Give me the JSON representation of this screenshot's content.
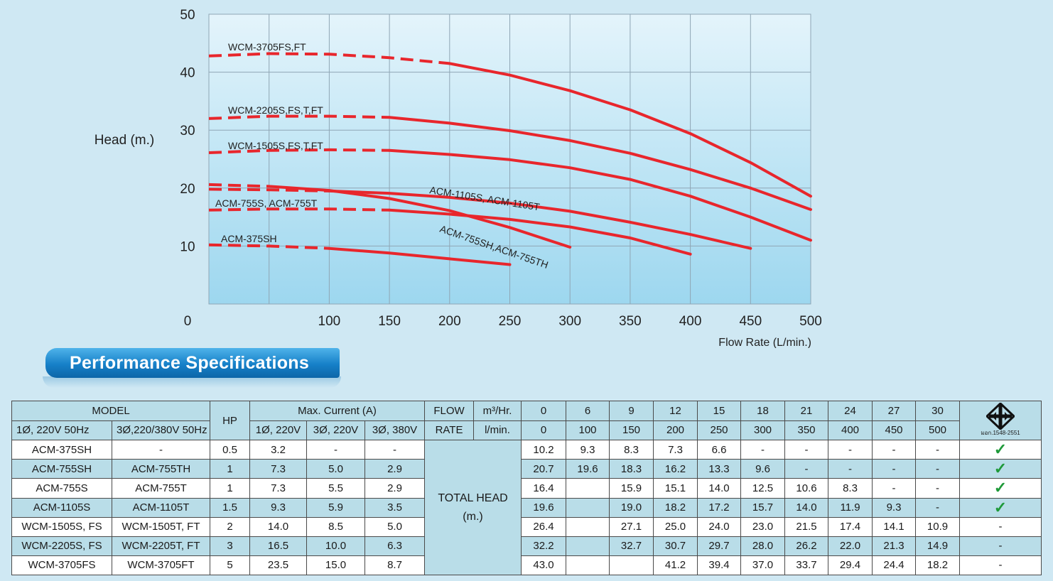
{
  "chart_data": {
    "type": "line",
    "xlabel": "Flow Rate (L/min.)",
    "ylabel": "Head (m.)",
    "xlim": [
      0,
      500
    ],
    "ylim": [
      0,
      50
    ],
    "origin_label": "0",
    "x_ticks": [
      "100",
      "150",
      "200",
      "250",
      "300",
      "350",
      "400",
      "450",
      "500"
    ],
    "y_ticks": [
      "10",
      "20",
      "30",
      "40",
      "50"
    ],
    "grid": true,
    "series": [
      {
        "name": "WCM-3705FS,FT",
        "dashed": [
          [
            0,
            42.8
          ],
          [
            50,
            43.2
          ],
          [
            100,
            43.1
          ],
          [
            150,
            42.5
          ],
          [
            200,
            41.5
          ]
        ],
        "solid": [
          [
            200,
            41.5
          ],
          [
            250,
            39.5
          ],
          [
            300,
            36.8
          ],
          [
            350,
            33.5
          ],
          [
            400,
            29.4
          ],
          [
            450,
            24.4
          ],
          [
            500,
            18.6
          ]
        ]
      },
      {
        "name": "WCM-2205S,FS,T,FT",
        "dashed": [
          [
            0,
            32.0
          ],
          [
            50,
            32.4
          ],
          [
            100,
            32.4
          ],
          [
            150,
            32.2
          ]
        ],
        "solid": [
          [
            150,
            32.2
          ],
          [
            200,
            31.2
          ],
          [
            250,
            29.9
          ],
          [
            300,
            28.2
          ],
          [
            350,
            26.0
          ],
          [
            400,
            23.2
          ],
          [
            450,
            20.0
          ],
          [
            500,
            16.3
          ]
        ]
      },
      {
        "name": "WCM-1505S,FS,T,FT",
        "dashed": [
          [
            0,
            26.1
          ],
          [
            50,
            26.5
          ],
          [
            100,
            26.6
          ],
          [
            150,
            26.5
          ]
        ],
        "solid": [
          [
            150,
            26.5
          ],
          [
            200,
            25.8
          ],
          [
            250,
            24.9
          ],
          [
            300,
            23.5
          ],
          [
            350,
            21.5
          ],
          [
            400,
            18.6
          ],
          [
            450,
            15.0
          ],
          [
            500,
            11.0
          ]
        ]
      },
      {
        "name": "ACM-1105S, ACM-1105T",
        "dashed": [
          [
            0,
            19.8
          ],
          [
            50,
            19.7
          ],
          [
            100,
            19.5
          ]
        ],
        "solid": [
          [
            100,
            19.5
          ],
          [
            150,
            19.1
          ],
          [
            200,
            18.4
          ],
          [
            250,
            17.4
          ],
          [
            300,
            16.0
          ],
          [
            350,
            14.1
          ],
          [
            400,
            12.0
          ],
          [
            450,
            9.6
          ]
        ]
      },
      {
        "name": "ACM-755SH,ACM-755TH",
        "dashed": [
          [
            0,
            20.6
          ],
          [
            50,
            20.3
          ]
        ],
        "solid": [
          [
            50,
            20.3
          ],
          [
            100,
            19.6
          ],
          [
            150,
            18.2
          ],
          [
            200,
            16.1
          ],
          [
            250,
            13.2
          ],
          [
            300,
            9.8
          ]
        ]
      },
      {
        "name": "ACM-755S, ACM-755T",
        "dashed": [
          [
            0,
            16.2
          ],
          [
            50,
            16.4
          ],
          [
            100,
            16.4
          ],
          [
            150,
            16.2
          ]
        ],
        "solid": [
          [
            150,
            16.2
          ],
          [
            200,
            15.5
          ],
          [
            250,
            14.6
          ],
          [
            300,
            13.3
          ],
          [
            350,
            11.4
          ],
          [
            400,
            8.6
          ]
        ]
      },
      {
        "name": "ACM-375SH",
        "dashed": [
          [
            0,
            10.2
          ],
          [
            50,
            10.0
          ],
          [
            100,
            9.6
          ]
        ],
        "solid": [
          [
            100,
            9.6
          ],
          [
            150,
            8.8
          ],
          [
            200,
            7.8
          ],
          [
            250,
            6.8
          ]
        ]
      }
    ],
    "colors": {
      "line": "#e8262c",
      "grid": "#8fa6b5",
      "plot_top": "#e4f4fb",
      "plot_bottom": "#9dd7ef"
    }
  },
  "banner": {
    "title": "Performance Specifications"
  },
  "table": {
    "header1": {
      "model": "MODEL",
      "hp": "HP",
      "max_current": "Max. Current (A)",
      "flow": "FLOW",
      "m3_unit": "m³/Hr.",
      "flow_m3": [
        "0",
        "6",
        "9",
        "12",
        "15",
        "18",
        "21",
        "24",
        "27",
        "30"
      ]
    },
    "header2": {
      "single_phase": "1Ø, 220V 50Hz",
      "three_phase": "3Ø,220/380V 50Hz",
      "cur_1_220": "1Ø, 220V",
      "cur_3_220": "3Ø, 220V",
      "cur_3_380": "3Ø, 380V",
      "rate": "RATE",
      "lmin_unit": "l/min.",
      "flow_lmin": [
        "0",
        "100",
        "150",
        "200",
        "250",
        "300",
        "350",
        "400",
        "450",
        "500"
      ]
    },
    "certification_text": "มอก.1548-2551",
    "total_head_label": "TOTAL HEAD",
    "total_head_unit": "(m.)",
    "rows": [
      {
        "m1": "ACM-375SH",
        "m3": "-",
        "hp": "0.5",
        "c1": "3.2",
        "c2": "-",
        "c3": "-",
        "head": [
          "10.2",
          "9.3",
          "8.3",
          "7.3",
          "6.6",
          "-",
          "-",
          "-",
          "-",
          "-"
        ],
        "cert": "✓"
      },
      {
        "m1": "ACM-755SH",
        "m3": "ACM-755TH",
        "hp": "1",
        "c1": "7.3",
        "c2": "5.0",
        "c3": "2.9",
        "head": [
          "20.7",
          "19.6",
          "18.3",
          "16.2",
          "13.3",
          "9.6",
          "-",
          "-",
          "-",
          "-"
        ],
        "cert": "✓"
      },
      {
        "m1": "ACM-755S",
        "m3": "ACM-755T",
        "hp": "1",
        "c1": "7.3",
        "c2": "5.5",
        "c3": "2.9",
        "head": [
          "16.4",
          "",
          "15.9",
          "15.1",
          "14.0",
          "12.5",
          "10.6",
          "8.3",
          "-",
          "-"
        ],
        "cert": "✓"
      },
      {
        "m1": "ACM-1105S",
        "m3": "ACM-1105T",
        "hp": "1.5",
        "c1": "9.3",
        "c2": "5.9",
        "c3": "3.5",
        "head": [
          "19.6",
          "",
          "19.0",
          "18.2",
          "17.2",
          "15.7",
          "14.0",
          "11.9",
          "9.3",
          "-"
        ],
        "cert": "✓"
      },
      {
        "m1": "WCM-1505S, FS",
        "m3": "WCM-1505T, FT",
        "hp": "2",
        "c1": "14.0",
        "c2": "8.5",
        "c3": "5.0",
        "head": [
          "26.4",
          "",
          "27.1",
          "25.0",
          "24.0",
          "23.0",
          "21.5",
          "17.4",
          "14.1",
          "10.9"
        ],
        "cert": "-"
      },
      {
        "m1": "WCM-2205S, FS",
        "m3": "WCM-2205T, FT",
        "hp": "3",
        "c1": "16.5",
        "c2": "10.0",
        "c3": "6.3",
        "head": [
          "32.2",
          "",
          "32.7",
          "30.7",
          "29.7",
          "28.0",
          "26.2",
          "22.0",
          "21.3",
          "14.9"
        ],
        "cert": "-"
      },
      {
        "m1": "WCM-3705FS",
        "m3": "WCM-3705FT",
        "hp": "5",
        "c1": "23.5",
        "c2": "15.0",
        "c3": "8.7",
        "head": [
          "43.0",
          "",
          "",
          "41.2",
          "39.4",
          "37.0",
          "33.7",
          "29.4",
          "24.4",
          "18.2"
        ],
        "cert": "-"
      }
    ]
  }
}
